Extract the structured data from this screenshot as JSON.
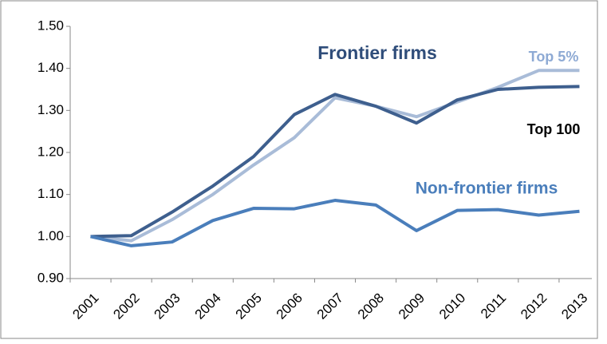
{
  "chart_data": {
    "type": "line",
    "categories": [
      "2001",
      "2002",
      "2003",
      "2004",
      "2005",
      "2006",
      "2007",
      "2008",
      "2009",
      "2010",
      "2011",
      "2012",
      "2013"
    ],
    "series": [
      {
        "name": "Top 5%",
        "color": "#a9bcd8",
        "values": [
          1.0,
          0.99,
          1.04,
          1.1,
          1.17,
          1.235,
          1.33,
          1.31,
          1.285,
          1.32,
          1.355,
          1.395,
          1.395
        ]
      },
      {
        "name": "Top 100",
        "color": "#3e5f8e",
        "values": [
          1.0,
          1.002,
          1.058,
          1.12,
          1.19,
          1.29,
          1.338,
          1.31,
          1.27,
          1.325,
          1.35,
          1.355,
          1.357
        ]
      },
      {
        "name": "Non-frontier firms",
        "color": "#4a7ebb",
        "values": [
          1.0,
          0.978,
          0.987,
          1.038,
          1.067,
          1.066,
          1.086,
          1.075,
          1.014,
          1.062,
          1.064,
          1.051,
          1.06
        ]
      }
    ],
    "annotations": [
      "Frontier firms"
    ],
    "ylim": [
      0.9,
      1.5
    ],
    "yticks": [
      {
        "value": 0.9,
        "label": "0.90"
      },
      {
        "value": 1.0,
        "label": "1.00"
      },
      {
        "value": 1.1,
        "label": "1.10"
      },
      {
        "value": 1.2,
        "label": "1.20"
      },
      {
        "value": 1.3,
        "label": "1.30"
      },
      {
        "value": 1.4,
        "label": "1.40"
      },
      {
        "value": 1.5,
        "label": "1.50"
      }
    ],
    "grid": false
  }
}
